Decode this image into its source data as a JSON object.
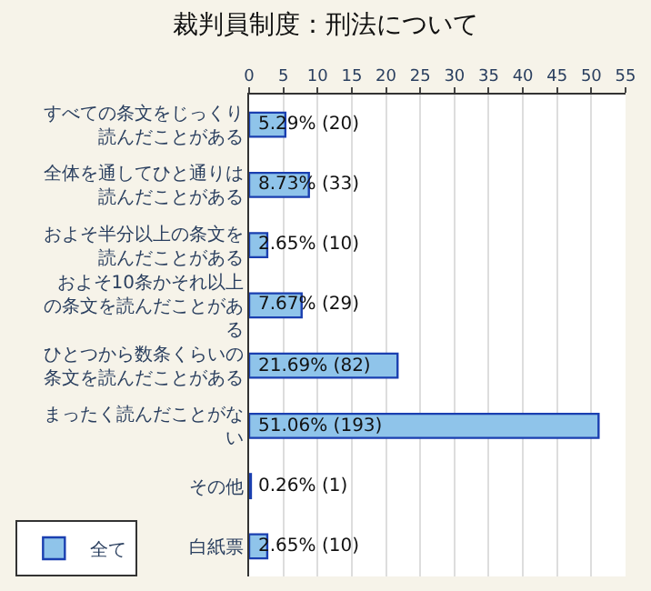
{
  "chart_data": {
    "type": "bar",
    "orientation": "horizontal",
    "title": "裁判員制度：刑法について",
    "categories": [
      "すべての条文をじっくり読んだことがある",
      "全体を通してひと通りは読んだことがある",
      "およそ半分以上の条文を読んだことがある",
      "およそ10条かそれ以上の条文を読んだことがある",
      "ひとつから数条くらいの条文を読んだことがある",
      "まったく読んだことがない",
      "その他",
      "白紙票"
    ],
    "series": [
      {
        "name": "全て",
        "color": "#8fc4ea",
        "values": [
          5.29,
          8.73,
          2.65,
          7.67,
          21.69,
          51.06,
          0.26,
          2.65
        ]
      }
    ],
    "value_labels": [
      "5.29% (20)",
      "8.73% (33)",
      "2.65% (10)",
      "7.67% (29)",
      "21.69% (82)",
      "51.06% (193)",
      "0.26% (1)",
      "2.65% (10)"
    ],
    "xlim": [
      0,
      55
    ],
    "xticks": [
      0,
      5,
      10,
      15,
      20,
      25,
      30,
      35,
      40,
      45,
      50,
      55
    ],
    "grid": "x",
    "legend": "bottom left"
  }
}
